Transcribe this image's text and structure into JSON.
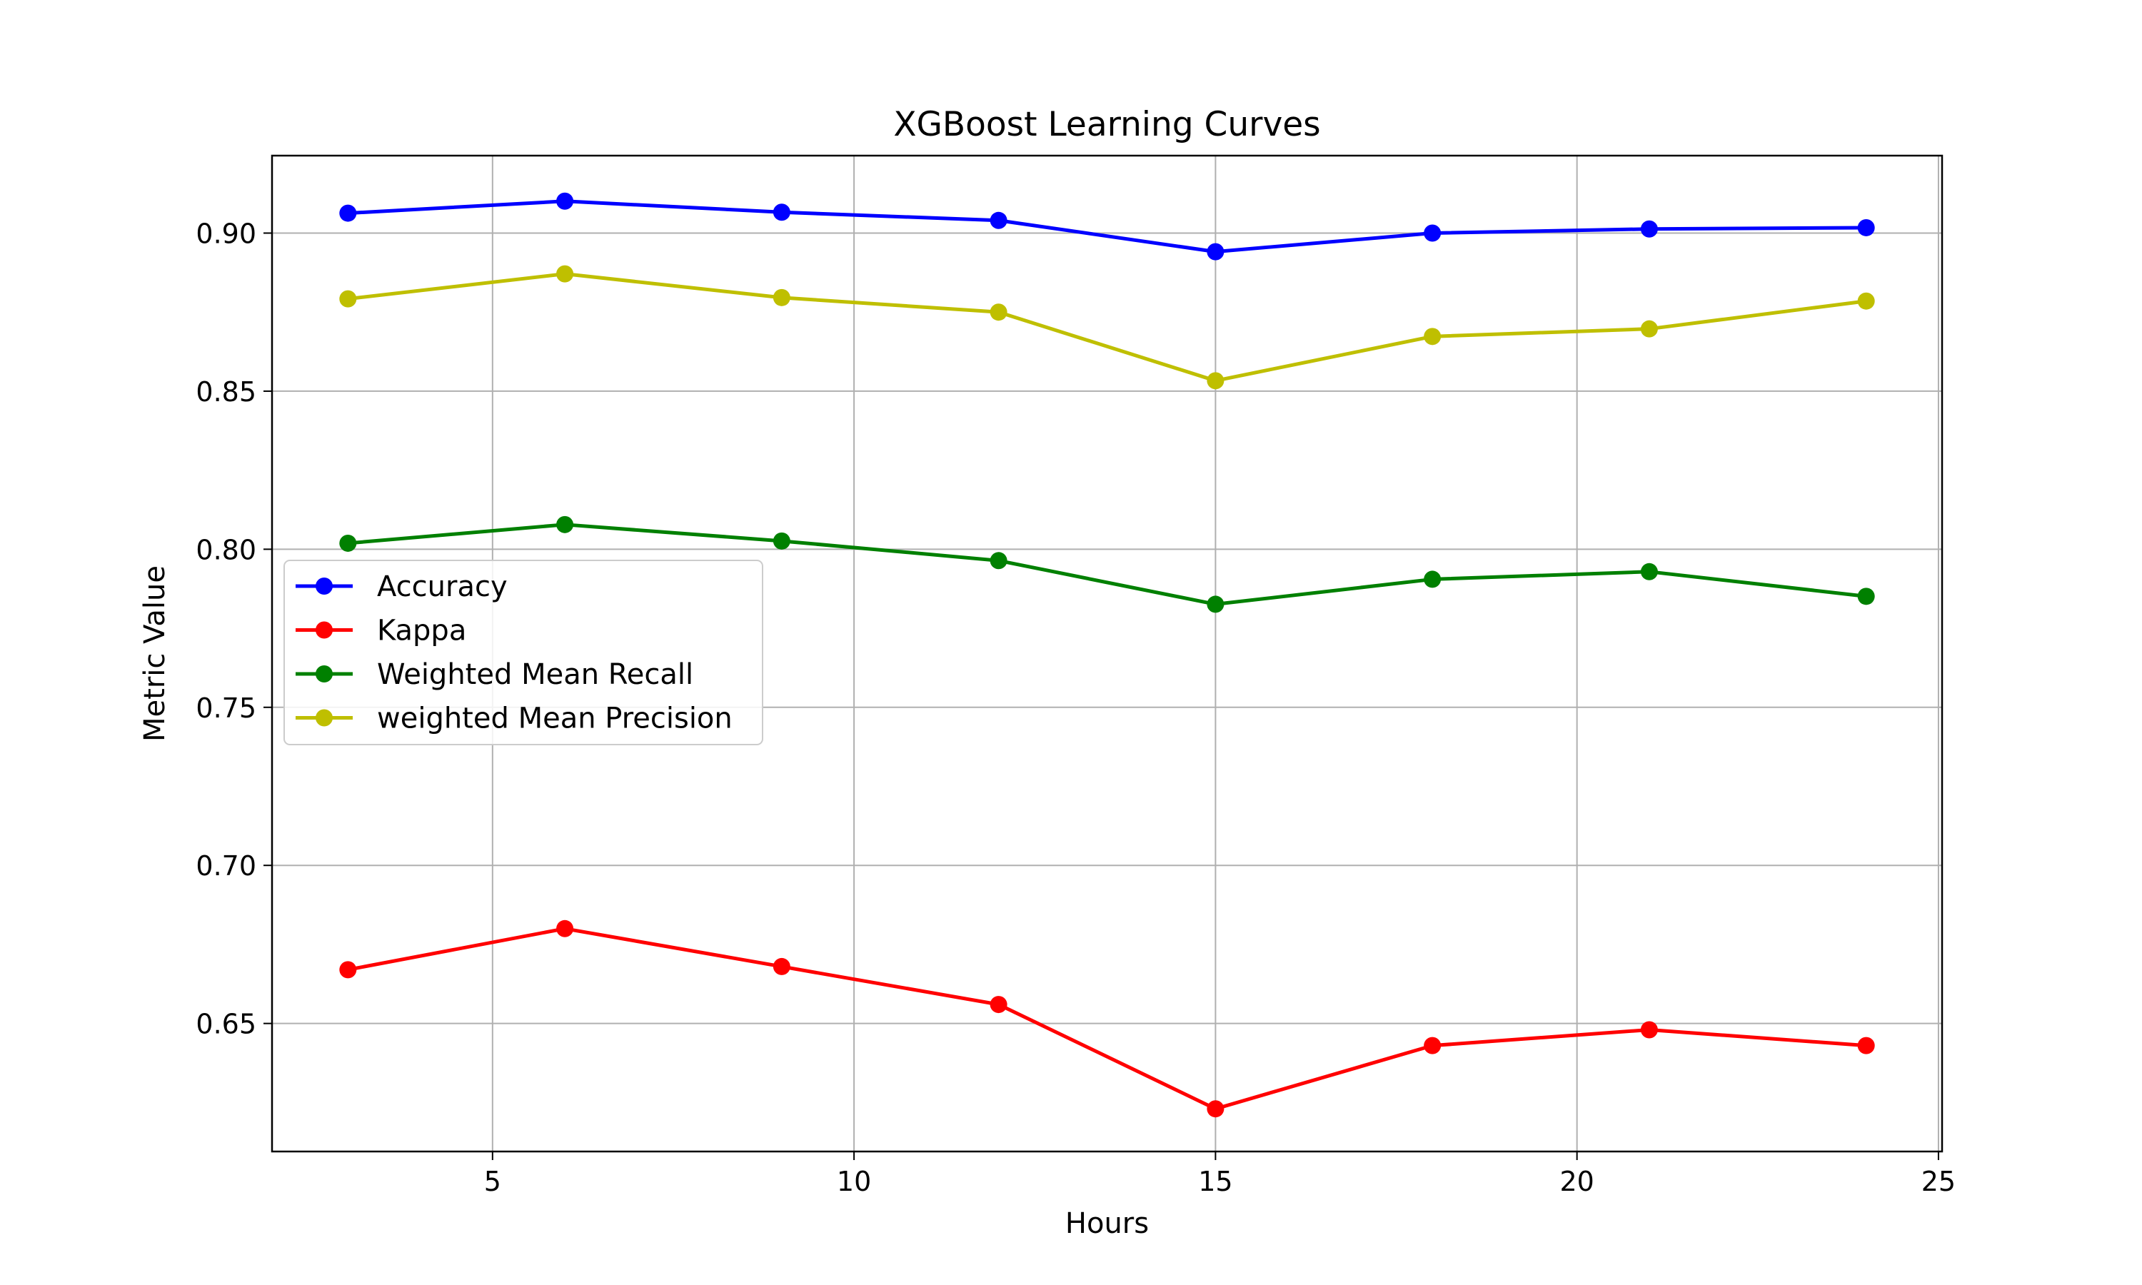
{
  "chart_data": {
    "type": "line",
    "title": "XGBoost Learning Curves",
    "xlabel": "Hours",
    "ylabel": "Metric Value",
    "xlim": [
      1.95,
      25.05
    ],
    "ylim": [
      0.6095,
      0.9245
    ],
    "xticks": [
      5,
      10,
      15,
      20,
      25
    ],
    "xtick_labels": [
      "5",
      "10",
      "15",
      "20",
      "25"
    ],
    "yticks": [
      0.65,
      0.7,
      0.75,
      0.8,
      0.85,
      0.9
    ],
    "ytick_labels": [
      "0.65",
      "0.70",
      "0.75",
      "0.80",
      "0.85",
      "0.90"
    ],
    "grid": true,
    "legend_position": "center-left",
    "x": [
      3,
      6,
      9,
      12,
      15,
      18,
      21,
      24
    ],
    "series": [
      {
        "name": "Accuracy",
        "color": "#0000ff",
        "marker": "circle",
        "values": [
          0.9063,
          0.9101,
          0.9066,
          0.904,
          0.8941,
          0.9,
          0.9013,
          0.9017
        ]
      },
      {
        "name": "Kappa",
        "color": "#ff0000",
        "marker": "circle",
        "values": [
          0.667,
          0.68,
          0.668,
          0.656,
          0.623,
          0.643,
          0.648,
          0.643
        ]
      },
      {
        "name": "Weighted Mean Recall",
        "color": "#008000",
        "marker": "circle",
        "values": [
          0.8019,
          0.8078,
          0.8026,
          0.7964,
          0.7826,
          0.7905,
          0.7929,
          0.7851
        ]
      },
      {
        "name": "weighted Mean Precision",
        "color": "#bfbf00",
        "marker": "circle",
        "values": [
          0.8792,
          0.8871,
          0.8796,
          0.875,
          0.8533,
          0.8673,
          0.8697,
          0.8785
        ]
      }
    ]
  }
}
